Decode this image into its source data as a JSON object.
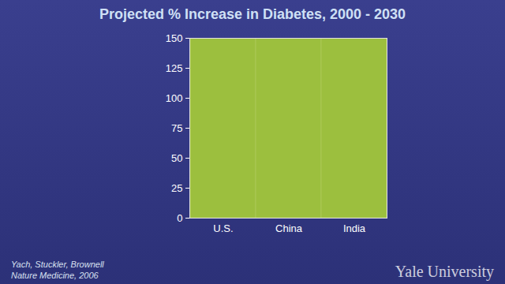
{
  "chart_data": {
    "type": "bar",
    "title": "Projected % Increase in Diabetes, 2000 - 2030",
    "categories": [
      "U.S.",
      "China",
      "India"
    ],
    "values": [
      150,
      150,
      150
    ],
    "color": "#9cbf3e",
    "ylim": [
      0,
      150
    ],
    "yticks": [
      0,
      25,
      50,
      75,
      100,
      125,
      150
    ],
    "grid": false,
    "source": [
      "Yach, Stuckler, Brownell",
      "Nature Medicine, 2006"
    ],
    "watermark": "Yale University"
  }
}
